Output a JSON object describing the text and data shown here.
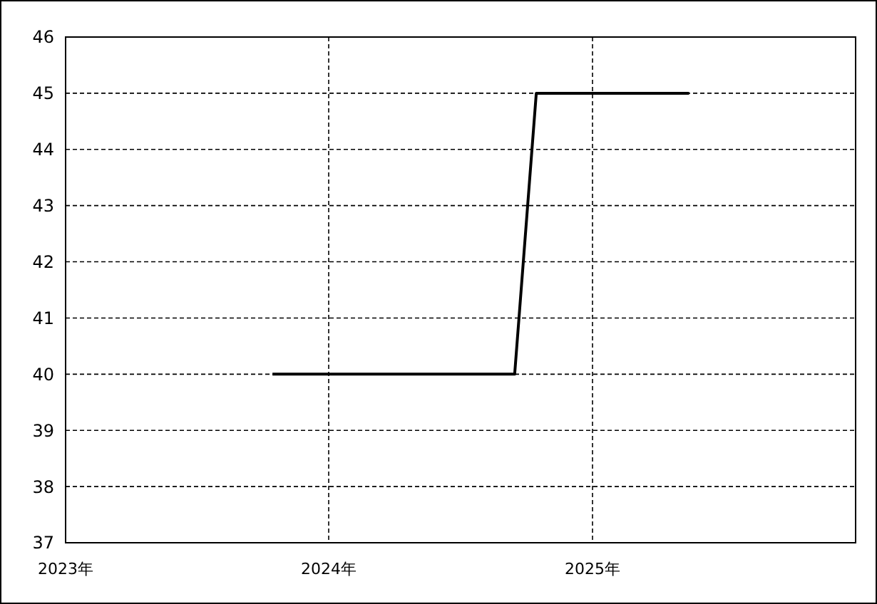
{
  "chart_data": {
    "type": "line",
    "x": [
      "2023-10-15",
      "2024-09-15",
      "2024-10-15",
      "2025-05-15"
    ],
    "series": [
      {
        "color": "#000000",
        "values": [
          40,
          40,
          45,
          45
        ]
      }
    ],
    "xlim": [
      "2023-01-01",
      "2026-01-01"
    ],
    "xticks": [
      {
        "value": "2023-01-01",
        "label": "2023年"
      },
      {
        "value": "2024-01-01",
        "label": "2024年"
      },
      {
        "value": "2025-01-01",
        "label": "2025年"
      }
    ],
    "ylim": [
      37,
      46
    ],
    "yticks": [
      37,
      38,
      39,
      40,
      41,
      42,
      43,
      44,
      45,
      46
    ],
    "grid": true
  }
}
